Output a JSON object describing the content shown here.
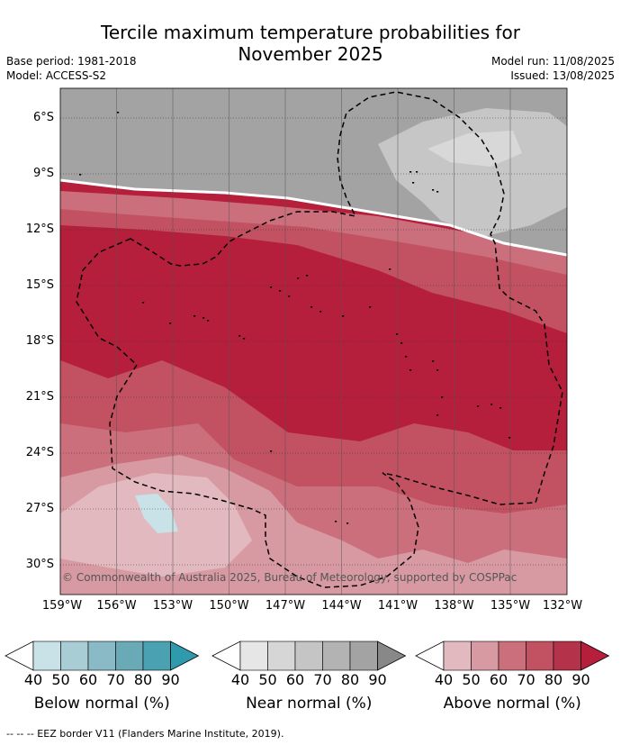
{
  "title_line1": "Tercile maximum temperature probabilities for",
  "title_line2": "November 2025",
  "base_period": "Base period: 1981-2018",
  "model": "Model: ACCESS-S2",
  "model_run": "Model run: 11/08/2025",
  "issued": "Issued: 13/08/2025",
  "map": {
    "lat_labels": [
      "6°S",
      "9°S",
      "12°S",
      "15°S",
      "18°S",
      "21°S",
      "24°S",
      "27°S",
      "30°S"
    ],
    "lon_labels": [
      "159°W",
      "156°W",
      "153°W",
      "150°W",
      "147°W",
      "144°W",
      "141°W",
      "138°W",
      "135°W",
      "132°W"
    ],
    "copyright": "© Commonwealth of Australia 2025, Bureau of Meteorology, supported by COSPPac",
    "colors": {
      "near_90": "#a3a3a3",
      "near_70": "#c6c6c6",
      "near_60": "#d8d8d8",
      "above_40": "#e2b9be",
      "above_50": "#d89aa2",
      "above_60": "#cc6f7c",
      "above_70": "#c25262",
      "above_80": "#b51f3b",
      "below_40": "#c9e2e7",
      "land": "#000000",
      "eez": "#000000"
    }
  },
  "colorbars": [
    {
      "title": "Below normal (%)",
      "ticks": [
        "40",
        "50",
        "60",
        "70",
        "80",
        "90"
      ],
      "colors": [
        "#c9e2e7",
        "#a9cdd4",
        "#89bac5",
        "#6aaab7",
        "#4aa1b1"
      ],
      "extend_color": "#2e9aac"
    },
    {
      "title": "Near normal (%)",
      "ticks": [
        "40",
        "50",
        "60",
        "70",
        "80",
        "90"
      ],
      "colors": [
        "#e6e6e6",
        "#d6d6d6",
        "#c5c5c5",
        "#b3b3b3",
        "#a3a3a3"
      ],
      "extend_color": "#888888"
    },
    {
      "title": "Above normal (%)",
      "ticks": [
        "40",
        "50",
        "60",
        "70",
        "80",
        "90"
      ],
      "colors": [
        "#e2b9be",
        "#d89aa2",
        "#cc6f7c",
        "#c25262",
        "#b5334a"
      ],
      "extend_color": "#b51f3b"
    }
  ],
  "footnote": "--  --  -- EEZ border V11 (Flanders Marine Institute, 2019)."
}
